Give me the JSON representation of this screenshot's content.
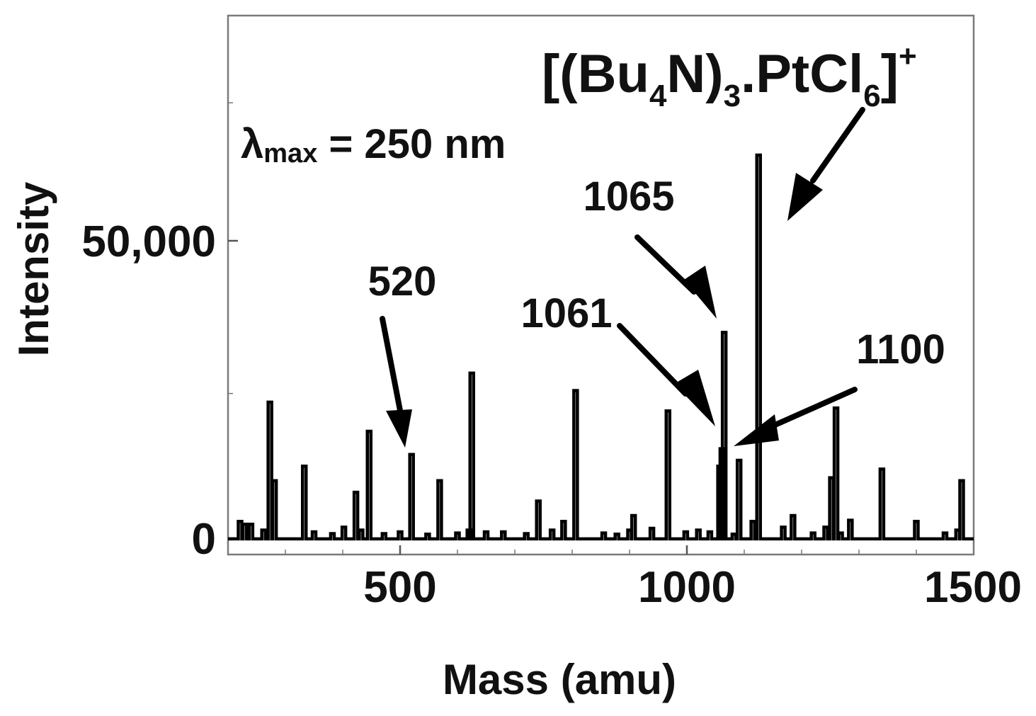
{
  "chart_data": {
    "type": "line",
    "title": "",
    "xlabel": "Mass (amu)",
    "ylabel": "Intensity",
    "xlim": [
      200,
      1500
    ],
    "ylim": [
      -2700,
      90000
    ],
    "grid": false,
    "x_ticks": [
      500,
      1000,
      1500
    ],
    "y_ticks": [
      0,
      50000
    ],
    "x_tick_labels": [
      "500",
      "1000",
      "1500"
    ],
    "y_tick_labels": [
      "0",
      "50,000"
    ],
    "series": [
      {
        "peaks": [
          {
            "x": 221,
            "y": 3000
          },
          {
            "x": 229,
            "y": 2500
          },
          {
            "x": 240,
            "y": 2500
          },
          {
            "x": 262,
            "y": 1500
          },
          {
            "x": 273,
            "y": 23500
          },
          {
            "x": 281,
            "y": 10000
          },
          {
            "x": 333,
            "y": 12500
          },
          {
            "x": 350,
            "y": 1200
          },
          {
            "x": 382,
            "y": 900
          },
          {
            "x": 402,
            "y": 2000
          },
          {
            "x": 423,
            "y": 8000
          },
          {
            "x": 432,
            "y": 1500
          },
          {
            "x": 446,
            "y": 18500
          },
          {
            "x": 472,
            "y": 900
          },
          {
            "x": 500,
            "y": 1200
          },
          {
            "x": 520,
            "y": 14500
          },
          {
            "x": 548,
            "y": 800
          },
          {
            "x": 569,
            "y": 10000
          },
          {
            "x": 600,
            "y": 1000
          },
          {
            "x": 620,
            "y": 1500
          },
          {
            "x": 625,
            "y": 28500
          },
          {
            "x": 650,
            "y": 1200
          },
          {
            "x": 680,
            "y": 1200
          },
          {
            "x": 720,
            "y": 900
          },
          {
            "x": 741,
            "y": 6500
          },
          {
            "x": 765,
            "y": 1500
          },
          {
            "x": 785,
            "y": 3000
          },
          {
            "x": 806,
            "y": 25500
          },
          {
            "x": 855,
            "y": 1000
          },
          {
            "x": 878,
            "y": 800
          },
          {
            "x": 900,
            "y": 1500
          },
          {
            "x": 907,
            "y": 4000
          },
          {
            "x": 939,
            "y": 1800
          },
          {
            "x": 967,
            "y": 22000
          },
          {
            "x": 998,
            "y": 1200
          },
          {
            "x": 1020,
            "y": 1500
          },
          {
            "x": 1040,
            "y": 1200
          },
          {
            "x": 1057,
            "y": 12500
          },
          {
            "x": 1061,
            "y": 15500
          },
          {
            "x": 1065,
            "y": 35500
          },
          {
            "x": 1082,
            "y": 800
          },
          {
            "x": 1091,
            "y": 13500
          },
          {
            "x": 1115,
            "y": 3000
          },
          {
            "x": 1125,
            "y": 66000
          },
          {
            "x": 1168,
            "y": 2000
          },
          {
            "x": 1185,
            "y": 4000
          },
          {
            "x": 1220,
            "y": 1000
          },
          {
            "x": 1242,
            "y": 2000
          },
          {
            "x": 1252,
            "y": 10500
          },
          {
            "x": 1260,
            "y": 22500
          },
          {
            "x": 1268,
            "y": 1000
          },
          {
            "x": 1285,
            "y": 3200
          },
          {
            "x": 1340,
            "y": 12000
          },
          {
            "x": 1400,
            "y": 3000
          },
          {
            "x": 1450,
            "y": 1000
          },
          {
            "x": 1472,
            "y": 1500
          },
          {
            "x": 1479,
            "y": 10000
          }
        ]
      }
    ],
    "annotations": {
      "lambda": {
        "symbol": "λ",
        "subscript": "max",
        "text": " = 250 nm"
      },
      "formula": {
        "open": "[(Bu",
        "sub1": "4",
        "mid1": "N)",
        "sub2": "3",
        "mid2": ".PtCl",
        "sub3": "6",
        "close": "]",
        "sup": "+"
      },
      "peak_labels": [
        {
          "text": "520",
          "x": 520
        },
        {
          "text": "1061",
          "x": 1061
        },
        {
          "text": "1065",
          "x": 1065
        },
        {
          "text": "1100",
          "x": 1100
        }
      ]
    }
  }
}
